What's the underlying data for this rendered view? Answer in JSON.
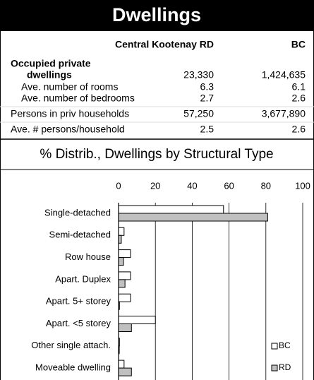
{
  "header": {
    "title": "Dwellings"
  },
  "table": {
    "columns": [
      "Central Kootenay RD",
      "BC"
    ],
    "rows": [
      {
        "label": [
          "Occupied private",
          "dwellings"
        ],
        "values": [
          "23,330",
          "1,424,635"
        ]
      },
      {
        "label": [
          "Ave. number of rooms"
        ],
        "values": [
          "6.3",
          "6.1"
        ]
      },
      {
        "label": [
          "Ave. number of bedrooms"
        ],
        "values": [
          "2.7",
          "2.6"
        ]
      },
      {
        "label": [
          "Persons in priv households"
        ],
        "values": [
          "57,250",
          "3,677,890"
        ]
      },
      {
        "label": [
          "Ave. # persons/household"
        ],
        "values": [
          "2.5",
          "2.6"
        ]
      }
    ]
  },
  "chart_data": {
    "type": "bar",
    "orientation": "horizontal",
    "title": "% Distrib., Dwellings by Structural Type",
    "categories": [
      "Single-detached",
      "Semi-detached",
      "Row house",
      "Apart. Duplex",
      "Apart. 5+ storey",
      "Apart. <5 storey",
      "Other single attach.",
      "Moveable dwelling"
    ],
    "series": [
      {
        "name": "BC",
        "color": "#ffffff",
        "values": [
          57,
          3,
          6.5,
          6.5,
          6.5,
          20,
          0.5,
          3
        ]
      },
      {
        "name": "RD",
        "color": "#c0c0c0",
        "values": [
          81,
          1.5,
          2.7,
          3.5,
          0.5,
          7,
          0.4,
          7
        ]
      }
    ],
    "xlim": [
      0,
      100
    ],
    "xticks": [
      0,
      20,
      40,
      60,
      80,
      100
    ],
    "grid": true,
    "legend": "bottom-right"
  }
}
